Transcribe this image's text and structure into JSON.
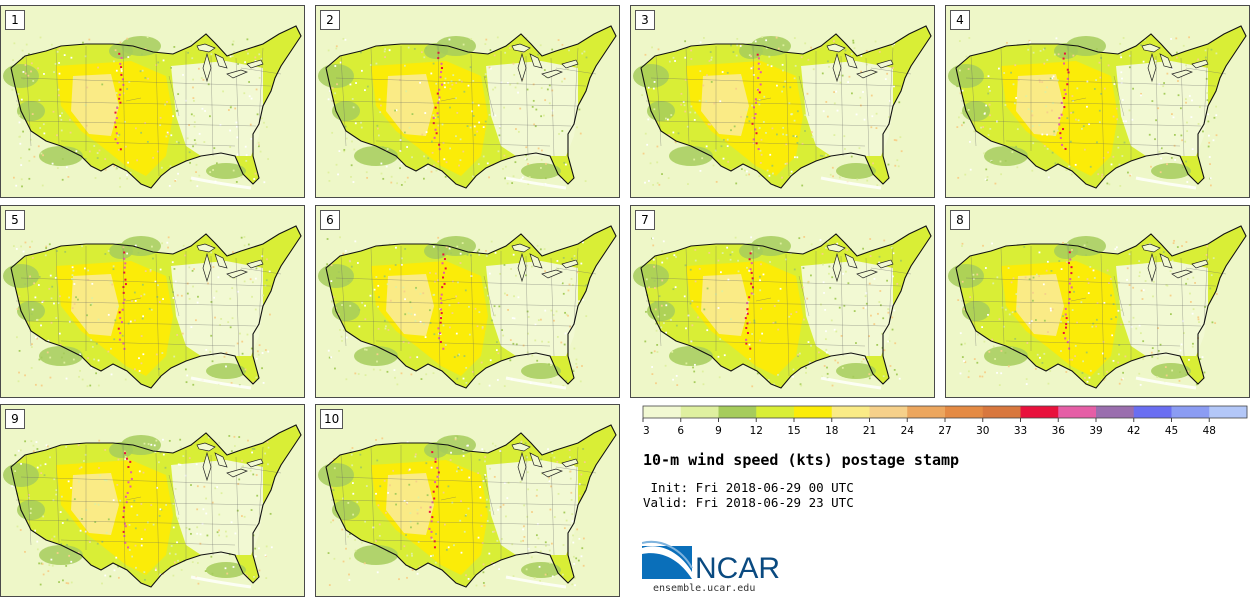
{
  "panels": [
    {
      "label": "1"
    },
    {
      "label": "2"
    },
    {
      "label": "3"
    },
    {
      "label": "4"
    },
    {
      "label": "5"
    },
    {
      "label": "6"
    },
    {
      "label": "7"
    },
    {
      "label": "8"
    },
    {
      "label": "9"
    },
    {
      "label": "10"
    }
  ],
  "legend": {
    "ticks": [
      "3",
      "6",
      "9",
      "12",
      "15",
      "18",
      "21",
      "24",
      "27",
      "30",
      "33",
      "36",
      "39",
      "42",
      "45",
      "48"
    ],
    "colors": [
      "#f2f9d3",
      "#dff0a0",
      "#a6cc5c",
      "#d9ee36",
      "#fbec08",
      "#faeb86",
      "#f6d08a",
      "#eca65e",
      "#e48a44",
      "#d8773e",
      "#e8113c",
      "#e55ea6",
      "#9a6eae",
      "#6a6ef1",
      "#8b9cf3",
      "#b3c7f8"
    ]
  },
  "title": "10-m wind speed (kts) postage stamp",
  "init_line": " Init: Fri 2018-06-29 00 UTC",
  "valid_line": "Valid: Fri 2018-06-29 23 UTC",
  "logo": {
    "text": "NCAR",
    "url": "ensemble.ucar.edu",
    "brand_color": "#0a4a80"
  }
}
